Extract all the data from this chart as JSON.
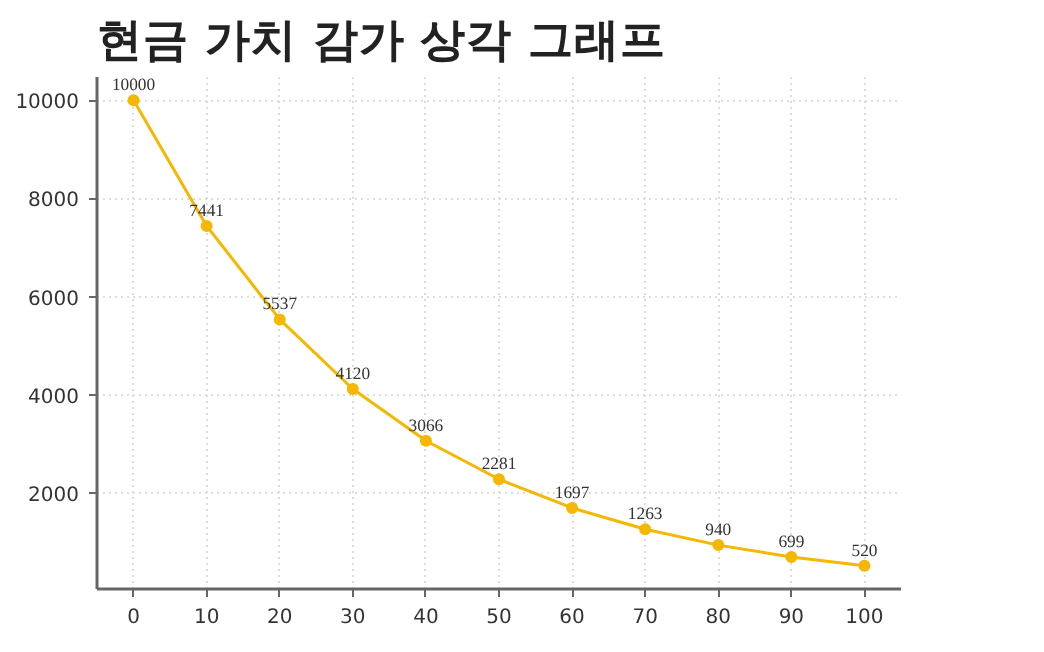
{
  "chart_data": {
    "type": "line",
    "title": "현금 가치 감가 상각 그래프",
    "x": [
      0,
      10,
      20,
      30,
      40,
      50,
      60,
      70,
      80,
      90,
      100
    ],
    "series": [
      {
        "color": "#f5b700",
        "values": [
          10000,
          7441,
          5537,
          4120,
          3066,
          2281,
          1697,
          1263,
          940,
          699,
          520
        ]
      }
    ],
    "xlim": [
      -5,
      105
    ],
    "xticks": [
      0,
      10,
      20,
      30,
      40,
      50,
      60,
      70,
      80,
      90,
      100
    ],
    "ylim": [
      46,
      10474
    ],
    "yticks": [
      2000,
      4000,
      6000,
      8000,
      10000
    ],
    "grid": true,
    "marker": "circle",
    "line_style": "solid",
    "data_labels": true
  }
}
